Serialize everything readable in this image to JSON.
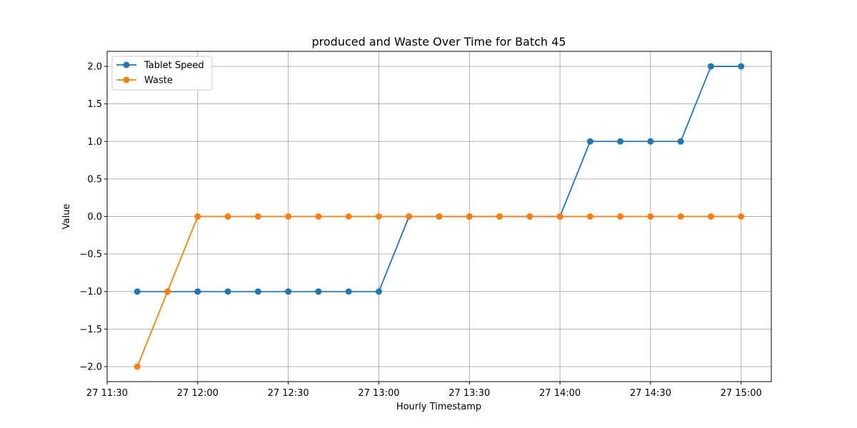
{
  "chart_data": {
    "type": "line",
    "title": "produced and Waste Over Time for Batch 45",
    "xlabel": "Hourly Timestamp",
    "ylabel": "Value",
    "x": [
      "27 11:40",
      "27 11:50",
      "27 12:00",
      "27 12:10",
      "27 12:20",
      "27 12:30",
      "27 12:40",
      "27 12:50",
      "27 13:00",
      "27 13:10",
      "27 13:20",
      "27 13:30",
      "27 13:40",
      "27 13:50",
      "27 14:00",
      "27 14:10",
      "27 14:20",
      "27 14:30",
      "27 14:40",
      "27 14:50",
      "27 15:00"
    ],
    "x_ticks": [
      "27 11:30",
      "27 12:00",
      "27 12:30",
      "27 13:00",
      "27 13:30",
      "27 14:00",
      "27 14:30",
      "27 15:00"
    ],
    "xlim": [
      "27 11:30",
      "27 15:10"
    ],
    "ylim": [
      -2.2,
      2.2
    ],
    "y_ticks": [
      "2.0",
      "1.5",
      "1.0",
      "0.5",
      "0.0",
      "−0.5",
      "−1.0",
      "−1.5",
      "−2.0"
    ],
    "grid": true,
    "legend_position": "top-left",
    "series": [
      {
        "name": "Tablet Speed",
        "color": "#1f77b4",
        "values": [
          -1,
          -1,
          -1,
          -1,
          -1,
          -1,
          -1,
          -1,
          -1,
          0,
          0,
          0,
          0,
          0,
          0,
          1,
          1,
          1,
          1,
          2,
          2
        ]
      },
      {
        "name": "Waste",
        "color": "#ff7f0e",
        "values": [
          -2,
          -1,
          0,
          0,
          0,
          0,
          0,
          0,
          0,
          0,
          0,
          0,
          0,
          0,
          0,
          0,
          0,
          0,
          0,
          0,
          0
        ]
      }
    ]
  }
}
